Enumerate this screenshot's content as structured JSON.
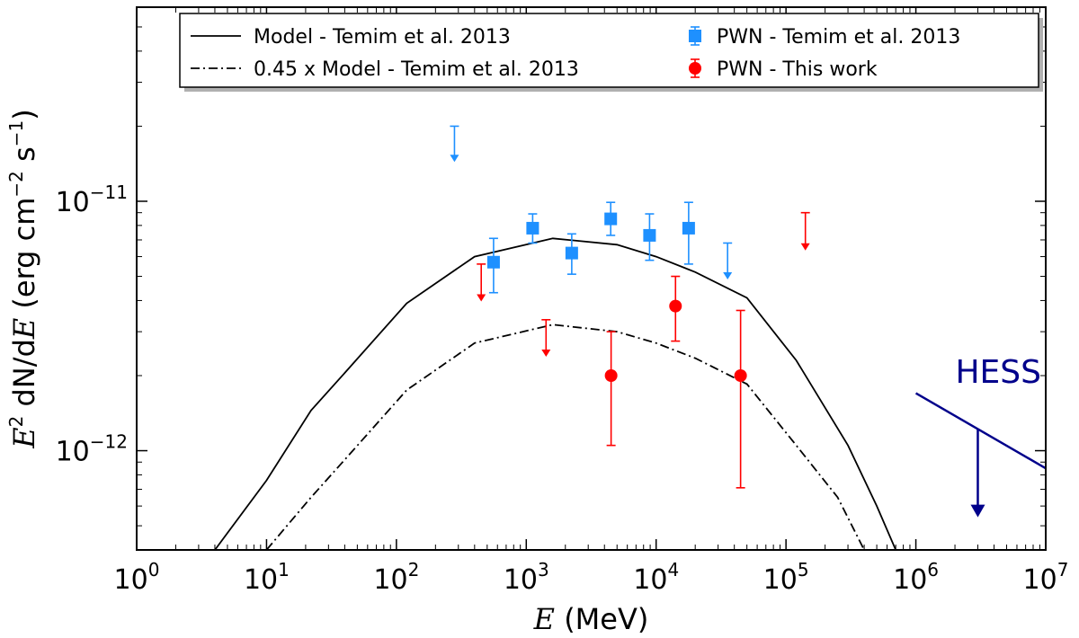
{
  "chart_data": {
    "type": "scatter",
    "xscale": "log",
    "yscale": "log",
    "xlim": [
      1,
      10000000
    ],
    "ylim": [
      4e-13,
      6e-11
    ],
    "xlabel": {
      "symbol": "E",
      "unit": " (MeV)"
    },
    "ylabel": {
      "symbol": "E",
      "sup": "2",
      "mid": " dN/d",
      "symbol2": "E",
      "unit": " (erg cm",
      "sup2": "−2",
      "unit2": " s",
      "sup3": "−1",
      "end": ")"
    },
    "x_ticks": [
      {
        "value": 1,
        "base": "10",
        "exp": "0"
      },
      {
        "value": 10,
        "base": "10",
        "exp": "1"
      },
      {
        "value": 100,
        "base": "10",
        "exp": "2"
      },
      {
        "value": 1000,
        "base": "10",
        "exp": "3"
      },
      {
        "value": 10000,
        "base": "10",
        "exp": "4"
      },
      {
        "value": 100000,
        "base": "10",
        "exp": "5"
      },
      {
        "value": 1000000,
        "base": "10",
        "exp": "6"
      },
      {
        "value": 10000000,
        "base": "10",
        "exp": "7"
      }
    ],
    "y_ticks": [
      {
        "value": 1e-12,
        "base": "10",
        "exp": "−12"
      },
      {
        "value": 1e-11,
        "base": "10",
        "exp": "−11"
      }
    ],
    "legend": {
      "position": "top",
      "entries": [
        {
          "label": "Model - Temim et al. 2013",
          "style": "solid"
        },
        {
          "label": "0.45 x Model - Temim et al. 2013",
          "style": "dashdot"
        },
        {
          "label": "PWN - Temim et al. 2013",
          "style": "square",
          "color": "#1e90ff"
        },
        {
          "label": "PWN - This work",
          "style": "circle",
          "color": "#ff0000"
        }
      ]
    },
    "series": [
      {
        "name": "Model - Temim et al. 2013",
        "kind": "line",
        "color": "#000000",
        "dash": "solid",
        "points": [
          [
            4,
            4e-13
          ],
          [
            10,
            7.6e-13
          ],
          [
            22,
            1.45e-12
          ],
          [
            40,
            2.05e-12
          ],
          [
            120,
            3.9e-12
          ],
          [
            400,
            6e-12
          ],
          [
            1600,
            7.1e-12
          ],
          [
            5000,
            6.7e-12
          ],
          [
            10000,
            6e-12
          ],
          [
            20000,
            5.2e-12
          ],
          [
            50000,
            4.1e-12
          ],
          [
            120000,
            2.3e-12
          ],
          [
            300000,
            1.05e-12
          ],
          [
            500000,
            6e-13
          ],
          [
            700000,
            4e-13
          ]
        ]
      },
      {
        "name": "0.45 x Model - Temim et al. 2013",
        "kind": "line",
        "color": "#000000",
        "dash": "dashdot",
        "points": [
          [
            10,
            4e-13
          ],
          [
            22,
            6.5e-13
          ],
          [
            40,
            9.2e-13
          ],
          [
            120,
            1.75e-12
          ],
          [
            400,
            2.7e-12
          ],
          [
            1600,
            3.2e-12
          ],
          [
            5000,
            3e-12
          ],
          [
            10000,
            2.7e-12
          ],
          [
            20000,
            2.35e-12
          ],
          [
            50000,
            1.85e-12
          ],
          [
            120000,
            1.05e-12
          ],
          [
            250000,
            6.5e-13
          ],
          [
            400000,
            4e-13
          ]
        ]
      },
      {
        "name": "PWN - Temim et al. 2013",
        "kind": "points",
        "marker": "square",
        "color": "#1e90ff",
        "points": [
          {
            "x": 560,
            "y": 5.7e-12,
            "lo": 4.3e-12,
            "hi": 7.1e-12
          },
          {
            "x": 1120,
            "y": 7.8e-12,
            "lo": 6.8e-12,
            "hi": 8.9e-12
          },
          {
            "x": 2240,
            "y": 6.2e-12,
            "lo": 5.1e-12,
            "hi": 7.4e-12
          },
          {
            "x": 4470,
            "y": 8.5e-12,
            "lo": 7.3e-12,
            "hi": 9.9e-12
          },
          {
            "x": 8900,
            "y": 7.3e-12,
            "lo": 5.8e-12,
            "hi": 8.9e-12
          },
          {
            "x": 17800,
            "y": 7.8e-12,
            "lo": 5.6e-12,
            "hi": 9.9e-12
          }
        ],
        "upper_limits": [
          {
            "x": 280,
            "y": 2e-11,
            "tip": 1.45e-11
          },
          {
            "x": 35500,
            "y": 6.8e-12,
            "tip": 4.9e-12
          }
        ]
      },
      {
        "name": "PWN - This work",
        "kind": "points",
        "marker": "circle",
        "color": "#ff0000",
        "points": [
          {
            "x": 4500,
            "y": 2e-12,
            "lo": 1.05e-12,
            "hi": 3e-12
          },
          {
            "x": 14100,
            "y": 3.8e-12,
            "lo": 2.75e-12,
            "hi": 5e-12
          },
          {
            "x": 44700,
            "y": 2e-12,
            "lo": 7.1e-13,
            "hi": 3.65e-12
          }
        ],
        "upper_limits": [
          {
            "x": 450,
            "y": 5.6e-12,
            "tip": 4e-12
          },
          {
            "x": 1420,
            "y": 3.35e-12,
            "tip": 2.4e-12
          },
          {
            "x": 141000,
            "y": 9e-12,
            "tip": 6.4e-12
          }
        ]
      },
      {
        "name": "HESS",
        "kind": "hess_limit",
        "color": "#00008b",
        "label": "HESS",
        "line": [
          [
            1000000,
            1.7e-12
          ],
          [
            10000000,
            8.5e-13
          ]
        ],
        "arrow": {
          "x": 3000000,
          "y": 1.22e-12,
          "tip": 5.5e-13
        }
      }
    ]
  }
}
